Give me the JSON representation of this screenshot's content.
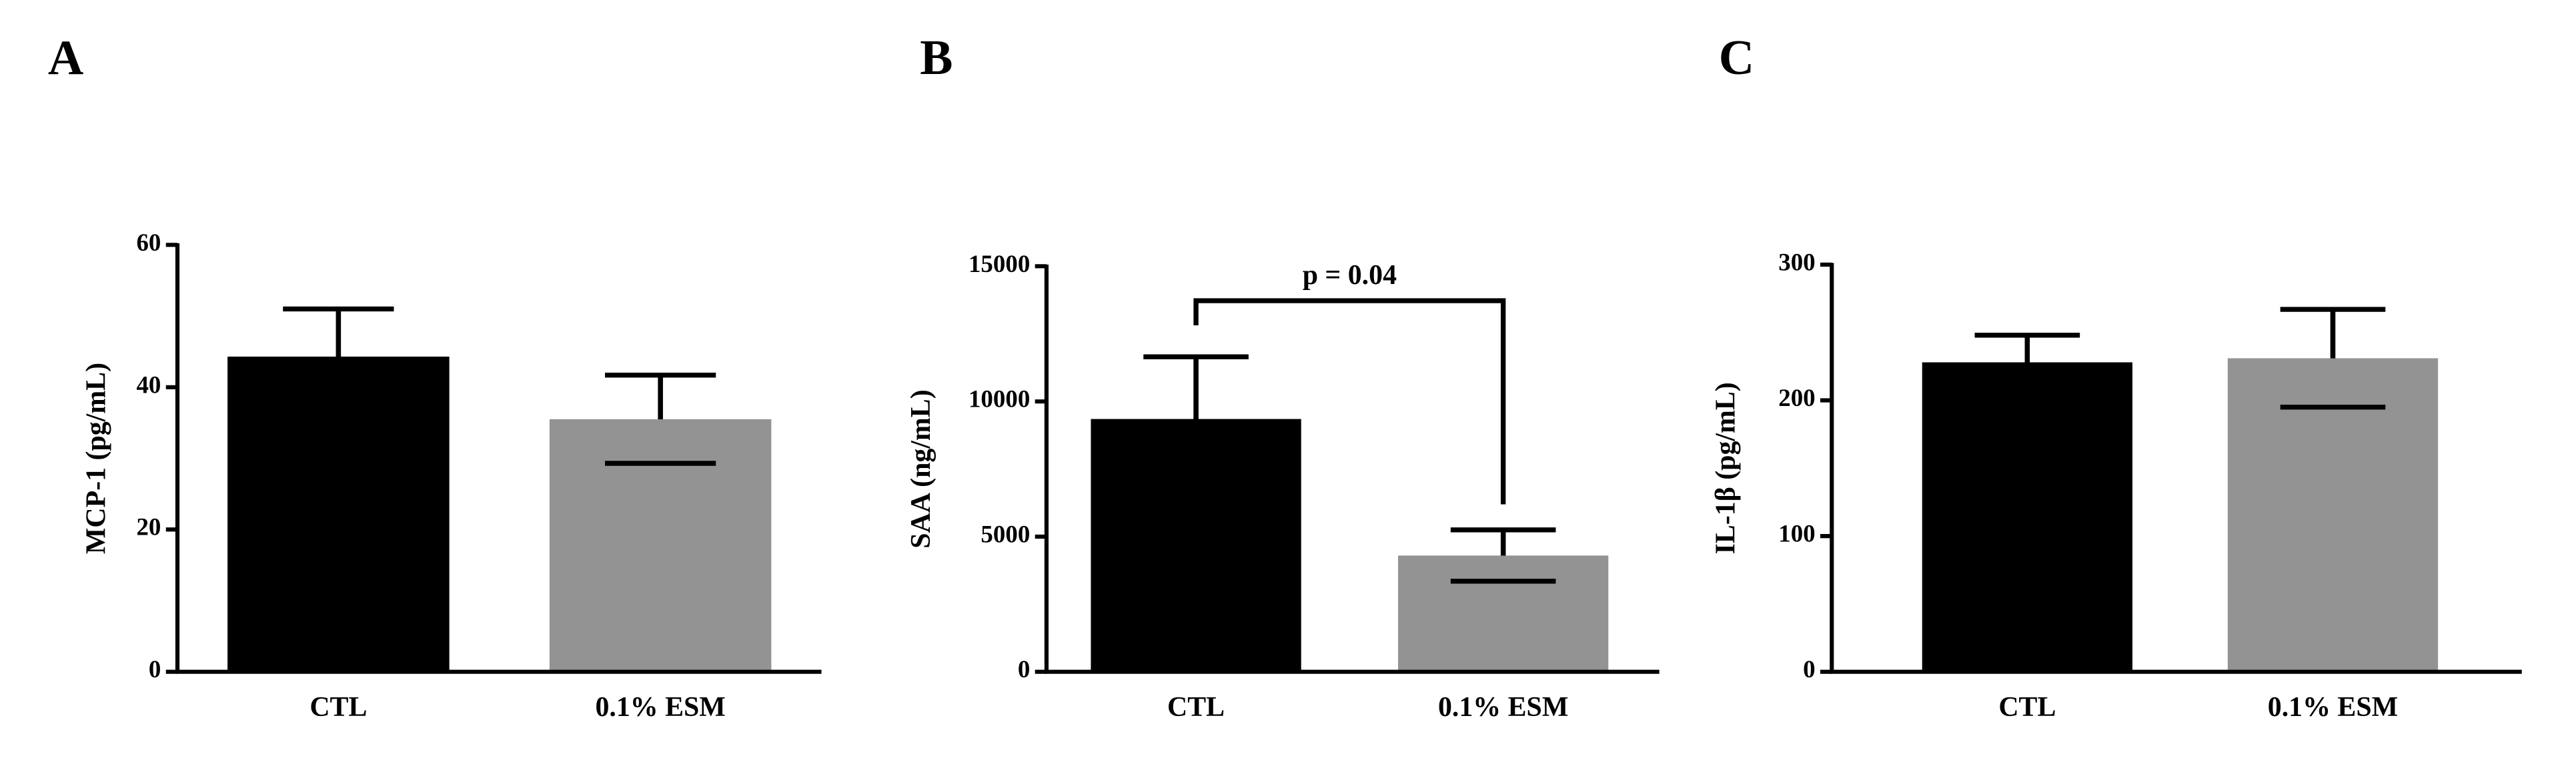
{
  "chart_data": [
    {
      "type": "bar",
      "panel_label": "A",
      "y_label": "MCP-1 (pg/mL)",
      "categories": [
        "CTL",
        "0.1% ESM"
      ],
      "values": [
        44.3,
        35.5
      ],
      "errors": [
        6.7,
        6.2
      ],
      "colors": [
        "#000000",
        "#939393"
      ],
      "ylim": [
        0,
        60
      ],
      "yticks": [
        0,
        20,
        40,
        60
      ]
    },
    {
      "type": "bar",
      "panel_label": "B",
      "y_label": "SAA (ng/mL)",
      "categories": [
        "CTL",
        "0.1% ESM"
      ],
      "values": [
        9350,
        4300
      ],
      "errors": [
        2300,
        950
      ],
      "colors": [
        "#000000",
        "#939393"
      ],
      "ylim": [
        0,
        15000
      ],
      "yticks": [
        0,
        5000,
        10000,
        15000
      ],
      "annotation": "p = 0.04"
    },
    {
      "type": "bar",
      "panel_label": "C",
      "y_label": "IL-1β (pg/mL)",
      "categories": [
        "CTL",
        "0.1% ESM"
      ],
      "values": [
        228,
        231
      ],
      "errors": [
        20,
        36
      ],
      "colors": [
        "#000000",
        "#939393"
      ],
      "ylim": [
        0,
        300
      ],
      "yticks": [
        0,
        100,
        200,
        300
      ]
    }
  ]
}
